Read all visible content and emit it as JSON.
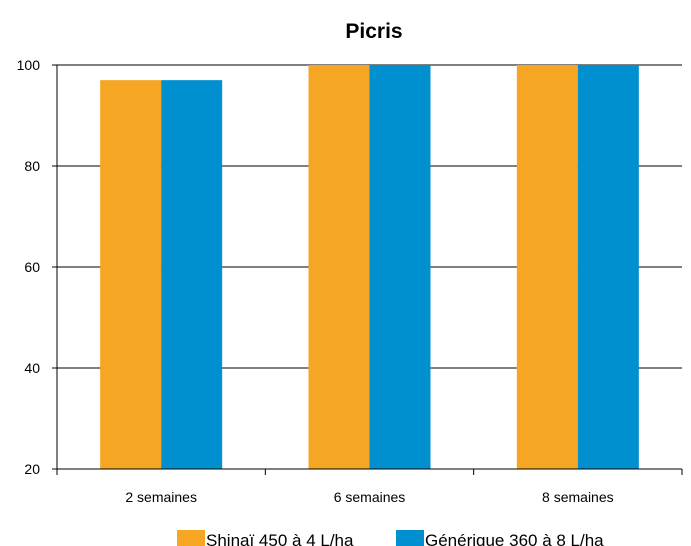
{
  "chart_data": {
    "type": "bar",
    "title": "Picris",
    "xlabel": "",
    "ylabel": "",
    "categories": [
      "2 semaines",
      "6 semaines",
      "8 semaines"
    ],
    "series": [
      {
        "name": "Shinaï 450 à 4 L/ha",
        "color": "#F5A623",
        "values": [
          97,
          100,
          100
        ]
      },
      {
        "name": "Générique 360 à 8 L/ha",
        "color": "#0090D0",
        "values": [
          97,
          100,
          100
        ]
      }
    ],
    "ylim": [
      20,
      100
    ],
    "yticks": [
      20,
      40,
      60,
      80,
      100
    ],
    "grid": true,
    "legend_position": "bottom"
  }
}
